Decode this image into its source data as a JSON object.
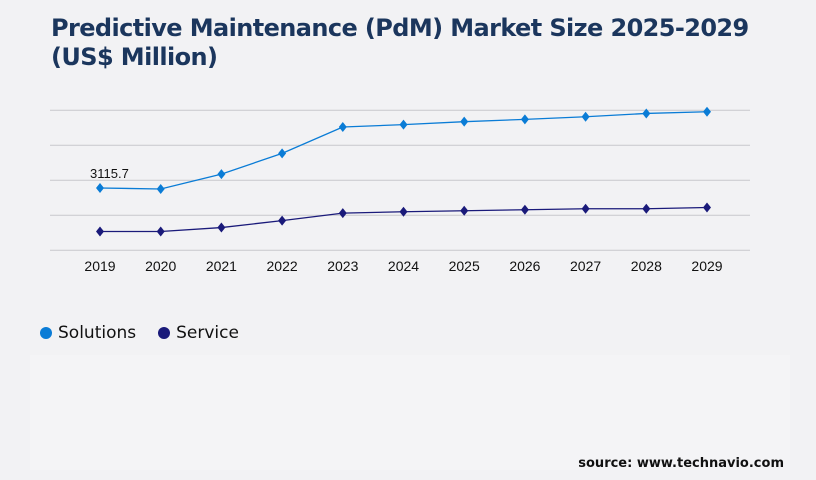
{
  "chart_data": {
    "type": "line",
    "title": "Predictive Maintenance (PdM) Market Size 2025-2029 (US$ Million)",
    "xlabel": "",
    "ylabel": "",
    "categories": [
      "2019",
      "2020",
      "2021",
      "2022",
      "2023",
      "2024",
      "2025",
      "2026",
      "2027",
      "2028",
      "2029"
    ],
    "ylim": [
      0,
      7000
    ],
    "grid": true,
    "legend_position": "bottom-left",
    "series": [
      {
        "name": "Solutions",
        "color": "#0a7cd6",
        "values": [
          3115.7,
          3066,
          3808,
          4846,
          6165,
          6283,
          6431,
          6545,
          6679,
          6842,
          6926
        ]
      },
      {
        "name": "Service",
        "color": "#1a1a7a",
        "values": [
          939,
          939,
          1137,
          1484,
          1859,
          1928,
          1978,
          2027,
          2077,
          2077,
          2141
        ]
      }
    ],
    "data_labels": [
      {
        "series": "Solutions",
        "category": "2019",
        "text": "3115.7"
      }
    ]
  },
  "source": "source: www.technavio.com"
}
